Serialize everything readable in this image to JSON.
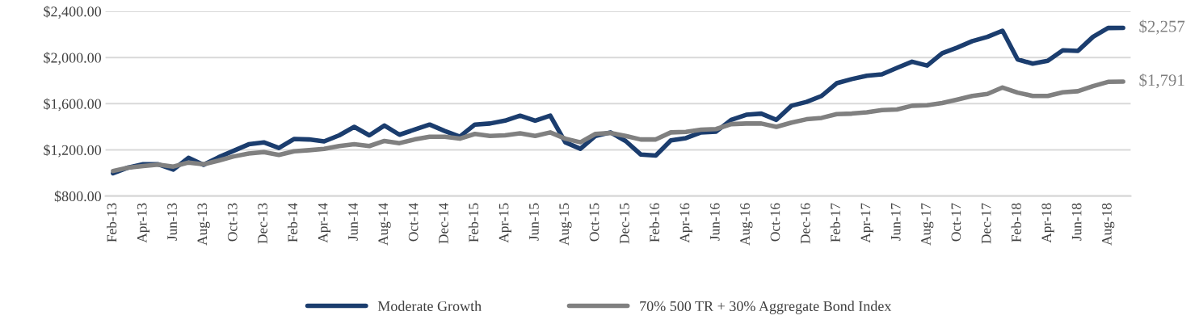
{
  "chart_data": {
    "type": "line",
    "categories": [
      "Feb-13",
      null,
      "Apr-13",
      null,
      "Jun-13",
      null,
      "Aug-13",
      null,
      "Oct-13",
      null,
      "Dec-13",
      null,
      "Feb-14",
      null,
      "Apr-14",
      null,
      "Jun-14",
      null,
      "Aug-14",
      null,
      "Oct-14",
      null,
      "Dec-14",
      null,
      "Feb-15",
      null,
      "Apr-15",
      null,
      "Jun-15",
      null,
      "Aug-15",
      null,
      "Oct-15",
      null,
      "Dec-15",
      null,
      "Feb-16",
      null,
      "Apr-16",
      null,
      "Jun-16",
      null,
      "Aug-16",
      null,
      "Oct-16",
      null,
      "Dec-16",
      null,
      "Feb-17",
      null,
      "Apr-17",
      null,
      "Jun-17",
      null,
      "Aug-17",
      null,
      "Oct-17",
      null,
      "Dec-17",
      null,
      "Feb-18",
      null,
      "Apr-18",
      null,
      "Jun-18",
      null,
      "Aug-18",
      null
    ],
    "series": [
      {
        "name": "Moderate Growth",
        "color": "#1b3d6e",
        "values": [
          997,
          1046,
          1075,
          1075,
          1029,
          1131,
          1070,
          1136,
          1192,
          1248,
          1265,
          1216,
          1294,
          1290,
          1273,
          1326,
          1399,
          1326,
          1411,
          1331,
          1375,
          1419,
          1363,
          1314,
          1419,
          1428,
          1453,
          1496,
          1453,
          1496,
          1265,
          1209,
          1321,
          1351,
          1277,
          1160,
          1151,
          1282,
          1302,
          1351,
          1358,
          1460,
          1504,
          1514,
          1460,
          1582,
          1615,
          1667,
          1777,
          1813,
          1842,
          1854,
          1910,
          1964,
          1930,
          2037,
          2086,
          2142,
          2179,
          2232,
          1984,
          1947,
          1971,
          2062,
          2057,
          2179,
          2256,
          2257
        ]
      },
      {
        "name": "70% 500 TR + 30% Aggregate Bond Index",
        "color": "#808080",
        "values": [
          1017,
          1046,
          1060,
          1072,
          1055,
          1090,
          1075,
          1107,
          1143,
          1168,
          1180,
          1156,
          1187,
          1197,
          1209,
          1233,
          1248,
          1233,
          1277,
          1258,
          1290,
          1314,
          1314,
          1297,
          1338,
          1321,
          1326,
          1343,
          1321,
          1351,
          1297,
          1265,
          1338,
          1346,
          1321,
          1290,
          1290,
          1351,
          1356,
          1375,
          1380,
          1423,
          1428,
          1428,
          1399,
          1436,
          1465,
          1477,
          1509,
          1514,
          1526,
          1545,
          1550,
          1582,
          1587,
          1606,
          1635,
          1667,
          1684,
          1740,
          1696,
          1667,
          1667,
          1699,
          1708,
          1752,
          1789,
          1791
        ]
      }
    ],
    "ylim": [
      800,
      2400
    ],
    "yticks": [
      {
        "value": 800,
        "label": "$800.00"
      },
      {
        "value": 1200,
        "label": "$1,200.00"
      },
      {
        "value": 1600,
        "label": "$1,600.00"
      },
      {
        "value": 2000,
        "label": "$2,000.00"
      },
      {
        "value": 2400,
        "label": "$2,400.00"
      }
    ],
    "annotations": [
      "$2,257",
      "$1,791"
    ],
    "grid": "y",
    "legend": "bottom",
    "marker": "none",
    "line_style": "solid"
  }
}
